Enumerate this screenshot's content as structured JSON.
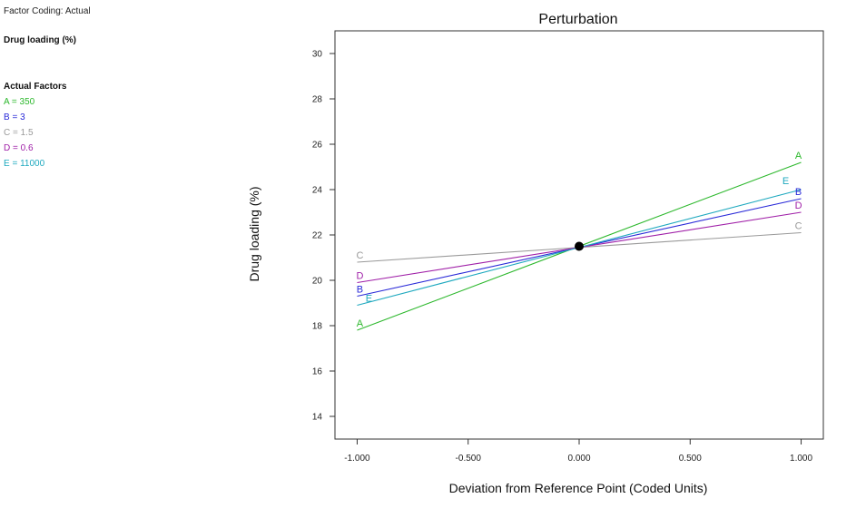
{
  "side_panel": {
    "factor_coding": "Factor Coding: Actual",
    "response": "Drug loading (%)",
    "actual_factors_heading": "Actual Factors",
    "factors": [
      {
        "text": "A = 350",
        "color": "#2db82d"
      },
      {
        "text": "B = 3",
        "color": "#2a2ad8"
      },
      {
        "text": "C = 1.5",
        "color": "#9a9a9a"
      },
      {
        "text": "D = 0.6",
        "color": "#a020a8"
      },
      {
        "text": "E = 11000",
        "color": "#1fa9bf"
      }
    ]
  },
  "chart_data": {
    "type": "line",
    "title": "Perturbation",
    "xlabel": "Deviation from Reference Point (Coded Units)",
    "ylabel": "Drug loading (%)",
    "xlim": [
      -1.1,
      1.1
    ],
    "ylim": [
      13,
      31
    ],
    "x_ticks": [
      -1.0,
      -0.5,
      0.0,
      0.5,
      1.0
    ],
    "x_tick_labels": [
      "-1.000",
      "-0.500",
      "0.000",
      "0.500",
      "1.000"
    ],
    "y_ticks": [
      14,
      16,
      18,
      20,
      22,
      24,
      26,
      28,
      30
    ],
    "y_tick_labels": [
      "14",
      "16",
      "18",
      "20",
      "22",
      "24",
      "26",
      "28",
      "30"
    ],
    "reference_point": {
      "x": 0.0,
      "y": 21.5
    },
    "series": [
      {
        "name": "A",
        "color": "#2db82d",
        "x": [
          -1.0,
          1.0
        ],
        "y": [
          17.8,
          25.2
        ]
      },
      {
        "name": "B",
        "color": "#2a2ad8",
        "x": [
          -1.0,
          1.0
        ],
        "y": [
          19.3,
          23.6
        ]
      },
      {
        "name": "C",
        "color": "#9a9a9a",
        "x": [
          -1.0,
          1.0
        ],
        "y": [
          20.8,
          22.1
        ]
      },
      {
        "name": "D",
        "color": "#a020a8",
        "x": [
          -1.0,
          1.0
        ],
        "y": [
          19.9,
          23.0
        ]
      },
      {
        "name": "E",
        "color": "#1fa9bf",
        "x": [
          -1.0,
          1.0
        ],
        "y": [
          18.9,
          24.0
        ]
      }
    ]
  }
}
